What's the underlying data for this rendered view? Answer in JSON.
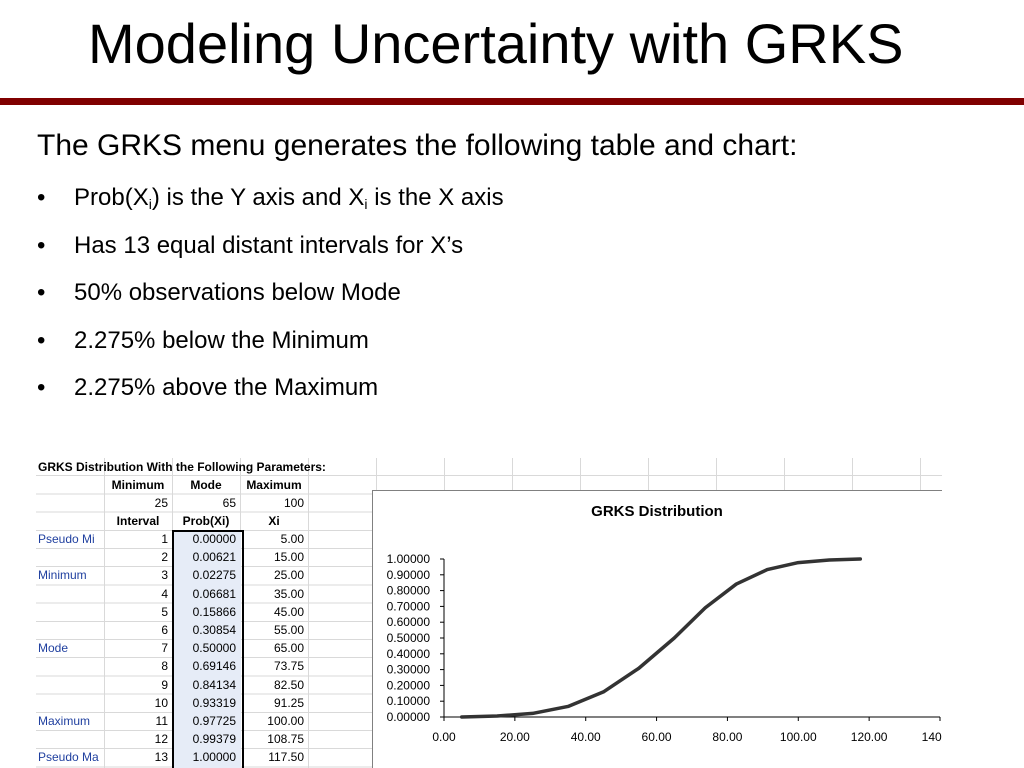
{
  "slide": {
    "title": "Modeling Uncertainty with GRKS",
    "intro": "The GRKS menu generates the following table and chart:",
    "bullet_char": "•",
    "bullets": {
      "b1": {
        "t1": "Prob(X",
        "s1": "i",
        "t2": ") is the Y axis and X",
        "s2": "i",
        "t3": " is the X axis"
      },
      "b2": "Has 13 equal distant intervals for X’s",
      "b3": "50% observations below Mode",
      "b4": "2.275% below the Minimum",
      "b5": "2.275% above the Maximum"
    },
    "colors": {
      "title_rule": "#800000",
      "prob_fill": "#e6ecf7"
    }
  },
  "sheet": {
    "heading": "GRKS Distribution With the Following Parameters:",
    "param_headers": {
      "minimum": "Minimum",
      "mode": "Mode",
      "maximum": "Maximum"
    },
    "param_values": {
      "minimum": "25",
      "mode": "65",
      "maximum": "100"
    },
    "col_headers": {
      "interval": "Interval",
      "prob": "Prob(Xi)",
      "xi": "Xi"
    },
    "rows": [
      {
        "label": "Pseudo Mi",
        "interval": "1",
        "prob": "0.00000",
        "xi": "5.00"
      },
      {
        "label": "",
        "interval": "2",
        "prob": "0.00621",
        "xi": "15.00"
      },
      {
        "label": "Minimum",
        "interval": "3",
        "prob": "0.02275",
        "xi": "25.00"
      },
      {
        "label": "",
        "interval": "4",
        "prob": "0.06681",
        "xi": "35.00"
      },
      {
        "label": "",
        "interval": "5",
        "prob": "0.15866",
        "xi": "45.00"
      },
      {
        "label": "",
        "interval": "6",
        "prob": "0.30854",
        "xi": "55.00"
      },
      {
        "label": "Mode",
        "interval": "7",
        "prob": "0.50000",
        "xi": "65.00"
      },
      {
        "label": "",
        "interval": "8",
        "prob": "0.69146",
        "xi": "73.75"
      },
      {
        "label": "",
        "interval": "9",
        "prob": "0.84134",
        "xi": "82.50"
      },
      {
        "label": "",
        "interval": "10",
        "prob": "0.93319",
        "xi": "91.25"
      },
      {
        "label": "Maximum",
        "interval": "11",
        "prob": "0.97725",
        "xi": "100.00"
      },
      {
        "label": "",
        "interval": "12",
        "prob": "0.99379",
        "xi": "108.75"
      },
      {
        "label": "Pseudo Ma",
        "interval": "13",
        "prob": "1.00000",
        "xi": "117.50"
      }
    ]
  },
  "chart_data": {
    "type": "line",
    "title": "GRKS Distribution",
    "xlabel": "",
    "ylabel": "",
    "x": [
      5.0,
      15.0,
      25.0,
      35.0,
      45.0,
      55.0,
      65.0,
      73.75,
      82.5,
      91.25,
      100.0,
      108.75,
      117.5
    ],
    "series": [
      {
        "values": [
          0.0,
          0.00621,
          0.02275,
          0.06681,
          0.15866,
          0.30854,
          0.5,
          0.69146,
          0.84134,
          0.93319,
          0.97725,
          0.99379,
          1.0
        ]
      }
    ],
    "xlim": [
      0,
      140
    ],
    "ylim": [
      0,
      1
    ],
    "x_ticks": [
      "0.00",
      "20.00",
      "40.00",
      "60.00",
      "80.00",
      "100.00",
      "120.00",
      "140.00"
    ],
    "y_ticks": [
      "0.00000",
      "0.10000",
      "0.20000",
      "0.30000",
      "0.40000",
      "0.50000",
      "0.60000",
      "0.70000",
      "0.80000",
      "0.90000",
      "1.00000"
    ],
    "grid": false,
    "line_color": "#333333"
  }
}
